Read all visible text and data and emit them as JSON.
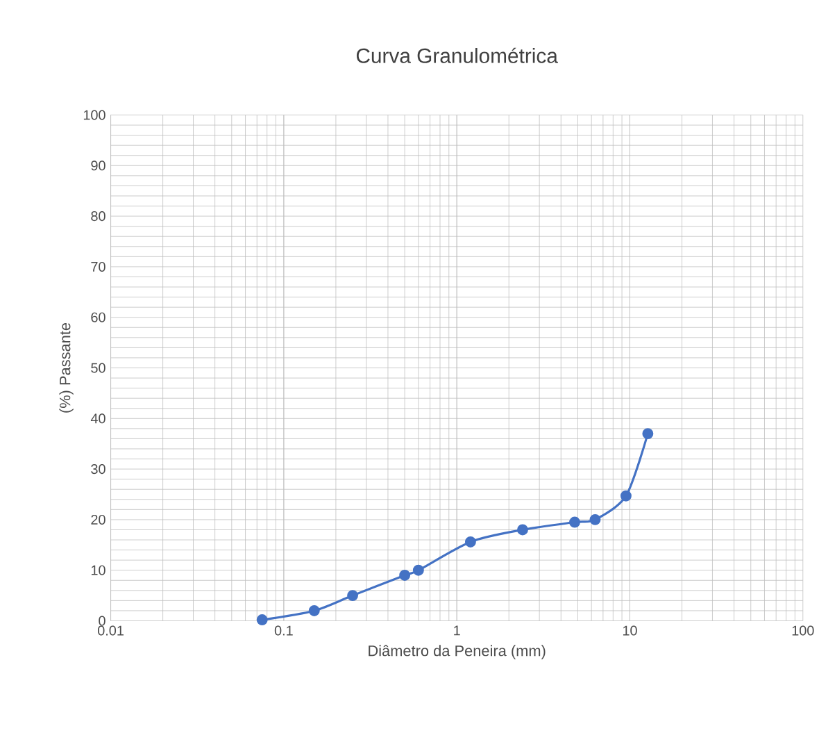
{
  "chart_data": {
    "type": "line",
    "title": "Curva Granulométrica",
    "xlabel": "Diâmetro da Peneira (mm)",
    "ylabel": "(%) Passante",
    "x": [
      0.075,
      0.15,
      0.25,
      0.5,
      0.6,
      1.2,
      2.4,
      4.8,
      6.3,
      9.5,
      12.7
    ],
    "series": [
      {
        "color": "#4472c4",
        "values": [
          0.2,
          2,
          5,
          9,
          10,
          15.6,
          18,
          19.5,
          20,
          24.7,
          37
        ]
      }
    ],
    "log": "x",
    "xlim": [
      0.01,
      100
    ],
    "xticks": [
      0.01,
      0.1,
      1,
      10,
      100
    ],
    "ylim": [
      0,
      100
    ],
    "yticks": [
      0,
      10,
      20,
      30,
      40,
      50,
      60,
      70,
      80,
      90,
      100
    ],
    "grid": true,
    "marker": "circle",
    "line_style": "solid"
  }
}
